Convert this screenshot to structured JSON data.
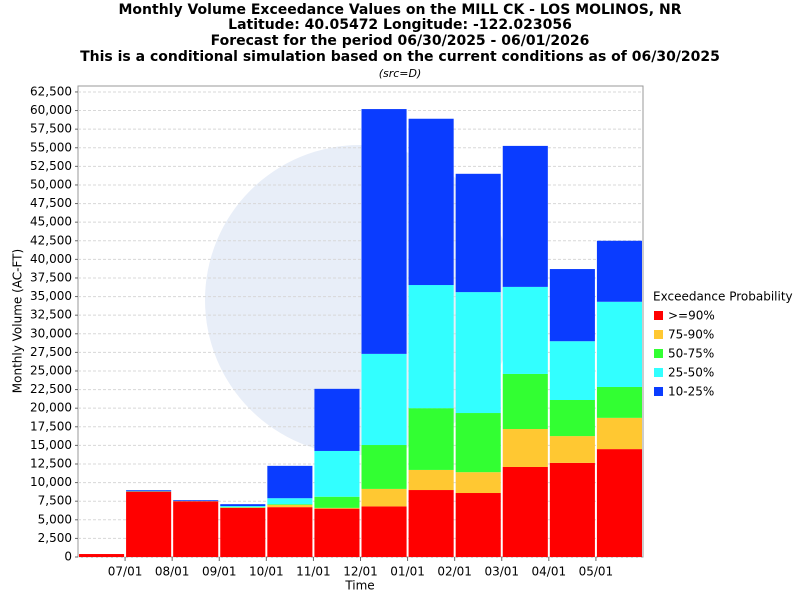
{
  "chart_data": {
    "type": "stacked_bar",
    "title": "Monthly Volume Exceedance Values on the MILL CK - LOS MOLINOS, NR",
    "subtitles": [
      "Latitude: 40.05472 Longitude: -122.023056",
      "Forecast for the period 06/30/2025 - 06/01/2026",
      "This is a conditional simulation based on the current conditions as of 06/30/2025"
    ],
    "note": "(src=D)",
    "x_label": "Time",
    "y_label": "Monthly Volume (AC-FT)",
    "legend_title": "Exceedance Probability",
    "categories": [
      null,
      "07/01",
      "08/01",
      "09/01",
      "10/01",
      "11/01",
      "12/01",
      "01/01",
      "02/01",
      "03/01",
      "04/01",
      "05/01"
    ],
    "series": [
      {
        "name": ">=90%",
        "color": "#ff0000",
        "values": [
          400,
          8800,
          7500,
          6600,
          6700,
          6500,
          6800,
          9000,
          8600,
          12100,
          12650,
          14500
        ]
      },
      {
        "name": "75-90%",
        "color": "#ffc832",
        "values": [
          0,
          0,
          0,
          50,
          300,
          100,
          2350,
          2700,
          2800,
          5100,
          3600,
          4200
        ]
      },
      {
        "name": "50-75%",
        "color": "#32ff32",
        "values": [
          0,
          0,
          0,
          50,
          100,
          1500,
          5900,
          8300,
          7950,
          7400,
          4850,
          4150
        ]
      },
      {
        "name": "25-50%",
        "color": "#32ffff",
        "values": [
          0,
          100,
          50,
          150,
          800,
          6150,
          12250,
          16550,
          16250,
          11700,
          7900,
          11450
        ]
      },
      {
        "name": "10-25%",
        "color": "#0a3cff",
        "values": [
          0,
          100,
          100,
          250,
          4350,
          8350,
          32900,
          22350,
          15900,
          18950,
          9700,
          8200
        ]
      }
    ],
    "ylim": [
      0,
      63300
    ],
    "yticks": [
      0,
      {
        "value": 2500,
        "label": "2,500"
      },
      {
        "value": 5000,
        "label": "5,000"
      },
      {
        "value": 7500,
        "label": "7,500"
      },
      {
        "value": 10000,
        "label": "10,000"
      },
      {
        "value": 12500,
        "label": "12,500"
      },
      {
        "value": 15000,
        "label": "15,000"
      },
      {
        "value": 17500,
        "label": "17,500"
      },
      {
        "value": 20000,
        "label": "20,000"
      },
      {
        "value": 22500,
        "label": "22,500"
      },
      {
        "value": 25000,
        "label": "25,000"
      },
      {
        "value": 27500,
        "label": "27,500"
      },
      {
        "value": 30000,
        "label": "30,000"
      },
      {
        "value": 32500,
        "label": "32,500"
      },
      {
        "value": 35000,
        "label": "35,000"
      },
      {
        "value": 37500,
        "label": "37,500"
      },
      {
        "value": 40000,
        "label": "40,000"
      },
      {
        "value": 42500,
        "label": "42,500"
      },
      {
        "value": 45000,
        "label": "45,000"
      },
      {
        "value": 47500,
        "label": "47,500"
      },
      {
        "value": 50000,
        "label": "50,000"
      },
      {
        "value": 52500,
        "label": "52,500"
      },
      {
        "value": 55000,
        "label": "55,000"
      },
      {
        "value": 57500,
        "label": "57,500"
      },
      {
        "value": 60000,
        "label": "60,000"
      },
      {
        "value": 62500,
        "label": "62,500"
      }
    ],
    "grid": true
  }
}
